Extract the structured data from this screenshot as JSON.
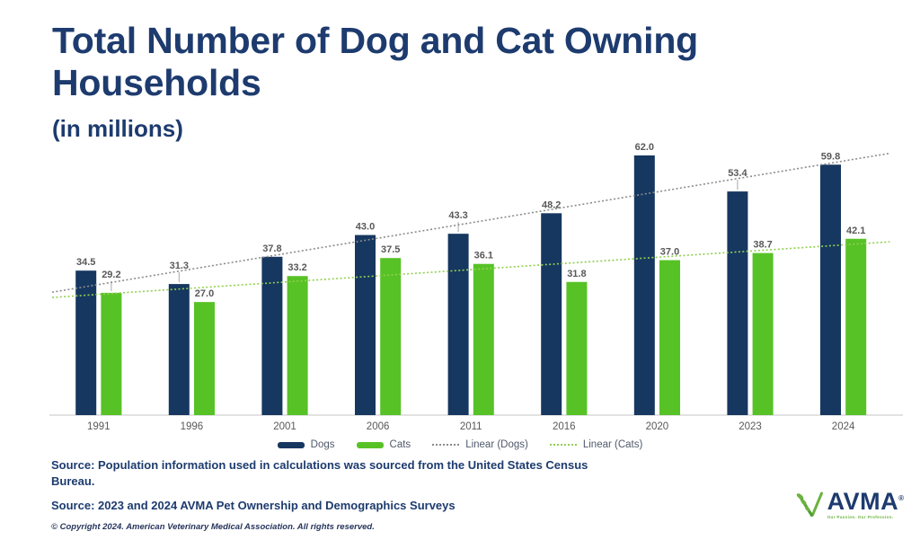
{
  "title": {
    "text": "Total Number of Dog and Cat Owning Households",
    "subtitle": "(in millions)"
  },
  "chart_data": {
    "type": "bar",
    "title": "Total Number of Dog and Cat Owning Households",
    "subtitle": "(in millions)",
    "categories": [
      "1991",
      "1996",
      "2001",
      "2006",
      "2011",
      "2016",
      "2020",
      "2023",
      "2024"
    ],
    "series": [
      {
        "name": "Dogs",
        "color": "#163760",
        "values": [
          34.5,
          31.3,
          37.8,
          43.0,
          43.3,
          48.2,
          62.0,
          53.4,
          59.8
        ]
      },
      {
        "name": "Cats",
        "color": "#57C226",
        "values": [
          29.2,
          27.0,
          33.2,
          37.5,
          36.1,
          31.8,
          37.0,
          38.7,
          42.1
        ]
      }
    ],
    "trendlines": [
      {
        "label": "Linear (Dogs)",
        "series": "Dogs",
        "color": "#8C8C8C",
        "style": "dotted"
      },
      {
        "label": "Linear (Cats)",
        "series": "Cats",
        "color": "#92D050",
        "style": "dotted"
      }
    ],
    "legend": [
      {
        "label": "Dogs",
        "type": "bar",
        "color": "#163760"
      },
      {
        "label": "Cats",
        "type": "bar",
        "color": "#57C226"
      },
      {
        "label": "Linear (Dogs)",
        "type": "dotted-line",
        "color": "#8C8C8C"
      },
      {
        "label": "Linear (Cats)",
        "type": "dotted-line",
        "color": "#92D050"
      }
    ],
    "ylim": [
      0,
      66
    ],
    "grid": false,
    "legend_position": "bottom",
    "value_labels": true,
    "value_label_color": "#595959",
    "axis_label_color": "#595959",
    "axis_line_color": "#D9D9D9",
    "label_leaders": [
      [
        0,
        1
      ],
      [
        1,
        0
      ],
      [
        4,
        0
      ],
      [
        7,
        0
      ]
    ]
  },
  "footer": {
    "source1": "Source: Population information used in calculations was sourced from the United States Census Bureau.",
    "source2": "Source: 2023 and 2024 AVMA Pet Ownership and Demographics Surveys",
    "copyright": "© Copyright 2024. American Veterinary Medical Association. All rights reserved."
  },
  "logo": {
    "name": "AVMA",
    "registered": "®",
    "tagline": "Our Passion. Our Profession.",
    "text_color": "#1d3b6e",
    "icon_color": "#6CB33F"
  }
}
